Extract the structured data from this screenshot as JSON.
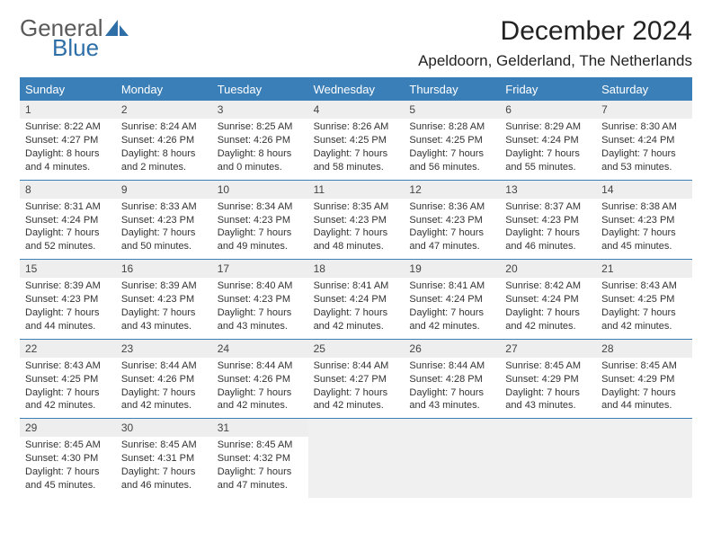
{
  "logo": {
    "word1": "General",
    "word2": "Blue",
    "word1_color": "#5a5a5a",
    "word2_color": "#2f6fa8",
    "icon_color": "#2f6fa8"
  },
  "header": {
    "title": "December 2024",
    "location": "Apeldoorn, Gelderland, The Netherlands"
  },
  "colors": {
    "header_bar": "#3b7fb8",
    "daynum_bg": "#eeeeee",
    "empty_bg": "#f0f0f0",
    "rule": "#3b7fb8"
  },
  "dow": [
    "Sunday",
    "Monday",
    "Tuesday",
    "Wednesday",
    "Thursday",
    "Friday",
    "Saturday"
  ],
  "weeks": [
    [
      {
        "n": "1",
        "sr": "Sunrise: 8:22 AM",
        "ss": "Sunset: 4:27 PM",
        "d1": "Daylight: 8 hours",
        "d2": "and 4 minutes."
      },
      {
        "n": "2",
        "sr": "Sunrise: 8:24 AM",
        "ss": "Sunset: 4:26 PM",
        "d1": "Daylight: 8 hours",
        "d2": "and 2 minutes."
      },
      {
        "n": "3",
        "sr": "Sunrise: 8:25 AM",
        "ss": "Sunset: 4:26 PM",
        "d1": "Daylight: 8 hours",
        "d2": "and 0 minutes."
      },
      {
        "n": "4",
        "sr": "Sunrise: 8:26 AM",
        "ss": "Sunset: 4:25 PM",
        "d1": "Daylight: 7 hours",
        "d2": "and 58 minutes."
      },
      {
        "n": "5",
        "sr": "Sunrise: 8:28 AM",
        "ss": "Sunset: 4:25 PM",
        "d1": "Daylight: 7 hours",
        "d2": "and 56 minutes."
      },
      {
        "n": "6",
        "sr": "Sunrise: 8:29 AM",
        "ss": "Sunset: 4:24 PM",
        "d1": "Daylight: 7 hours",
        "d2": "and 55 minutes."
      },
      {
        "n": "7",
        "sr": "Sunrise: 8:30 AM",
        "ss": "Sunset: 4:24 PM",
        "d1": "Daylight: 7 hours",
        "d2": "and 53 minutes."
      }
    ],
    [
      {
        "n": "8",
        "sr": "Sunrise: 8:31 AM",
        "ss": "Sunset: 4:24 PM",
        "d1": "Daylight: 7 hours",
        "d2": "and 52 minutes."
      },
      {
        "n": "9",
        "sr": "Sunrise: 8:33 AM",
        "ss": "Sunset: 4:23 PM",
        "d1": "Daylight: 7 hours",
        "d2": "and 50 minutes."
      },
      {
        "n": "10",
        "sr": "Sunrise: 8:34 AM",
        "ss": "Sunset: 4:23 PM",
        "d1": "Daylight: 7 hours",
        "d2": "and 49 minutes."
      },
      {
        "n": "11",
        "sr": "Sunrise: 8:35 AM",
        "ss": "Sunset: 4:23 PM",
        "d1": "Daylight: 7 hours",
        "d2": "and 48 minutes."
      },
      {
        "n": "12",
        "sr": "Sunrise: 8:36 AM",
        "ss": "Sunset: 4:23 PM",
        "d1": "Daylight: 7 hours",
        "d2": "and 47 minutes."
      },
      {
        "n": "13",
        "sr": "Sunrise: 8:37 AM",
        "ss": "Sunset: 4:23 PM",
        "d1": "Daylight: 7 hours",
        "d2": "and 46 minutes."
      },
      {
        "n": "14",
        "sr": "Sunrise: 8:38 AM",
        "ss": "Sunset: 4:23 PM",
        "d1": "Daylight: 7 hours",
        "d2": "and 45 minutes."
      }
    ],
    [
      {
        "n": "15",
        "sr": "Sunrise: 8:39 AM",
        "ss": "Sunset: 4:23 PM",
        "d1": "Daylight: 7 hours",
        "d2": "and 44 minutes."
      },
      {
        "n": "16",
        "sr": "Sunrise: 8:39 AM",
        "ss": "Sunset: 4:23 PM",
        "d1": "Daylight: 7 hours",
        "d2": "and 43 minutes."
      },
      {
        "n": "17",
        "sr": "Sunrise: 8:40 AM",
        "ss": "Sunset: 4:23 PM",
        "d1": "Daylight: 7 hours",
        "d2": "and 43 minutes."
      },
      {
        "n": "18",
        "sr": "Sunrise: 8:41 AM",
        "ss": "Sunset: 4:24 PM",
        "d1": "Daylight: 7 hours",
        "d2": "and 42 minutes."
      },
      {
        "n": "19",
        "sr": "Sunrise: 8:41 AM",
        "ss": "Sunset: 4:24 PM",
        "d1": "Daylight: 7 hours",
        "d2": "and 42 minutes."
      },
      {
        "n": "20",
        "sr": "Sunrise: 8:42 AM",
        "ss": "Sunset: 4:24 PM",
        "d1": "Daylight: 7 hours",
        "d2": "and 42 minutes."
      },
      {
        "n": "21",
        "sr": "Sunrise: 8:43 AM",
        "ss": "Sunset: 4:25 PM",
        "d1": "Daylight: 7 hours",
        "d2": "and 42 minutes."
      }
    ],
    [
      {
        "n": "22",
        "sr": "Sunrise: 8:43 AM",
        "ss": "Sunset: 4:25 PM",
        "d1": "Daylight: 7 hours",
        "d2": "and 42 minutes."
      },
      {
        "n": "23",
        "sr": "Sunrise: 8:44 AM",
        "ss": "Sunset: 4:26 PM",
        "d1": "Daylight: 7 hours",
        "d2": "and 42 minutes."
      },
      {
        "n": "24",
        "sr": "Sunrise: 8:44 AM",
        "ss": "Sunset: 4:26 PM",
        "d1": "Daylight: 7 hours",
        "d2": "and 42 minutes."
      },
      {
        "n": "25",
        "sr": "Sunrise: 8:44 AM",
        "ss": "Sunset: 4:27 PM",
        "d1": "Daylight: 7 hours",
        "d2": "and 42 minutes."
      },
      {
        "n": "26",
        "sr": "Sunrise: 8:44 AM",
        "ss": "Sunset: 4:28 PM",
        "d1": "Daylight: 7 hours",
        "d2": "and 43 minutes."
      },
      {
        "n": "27",
        "sr": "Sunrise: 8:45 AM",
        "ss": "Sunset: 4:29 PM",
        "d1": "Daylight: 7 hours",
        "d2": "and 43 minutes."
      },
      {
        "n": "28",
        "sr": "Sunrise: 8:45 AM",
        "ss": "Sunset: 4:29 PM",
        "d1": "Daylight: 7 hours",
        "d2": "and 44 minutes."
      }
    ],
    [
      {
        "n": "29",
        "sr": "Sunrise: 8:45 AM",
        "ss": "Sunset: 4:30 PM",
        "d1": "Daylight: 7 hours",
        "d2": "and 45 minutes."
      },
      {
        "n": "30",
        "sr": "Sunrise: 8:45 AM",
        "ss": "Sunset: 4:31 PM",
        "d1": "Daylight: 7 hours",
        "d2": "and 46 minutes."
      },
      {
        "n": "31",
        "sr": "Sunrise: 8:45 AM",
        "ss": "Sunset: 4:32 PM",
        "d1": "Daylight: 7 hours",
        "d2": "and 47 minutes."
      },
      null,
      null,
      null,
      null
    ]
  ]
}
